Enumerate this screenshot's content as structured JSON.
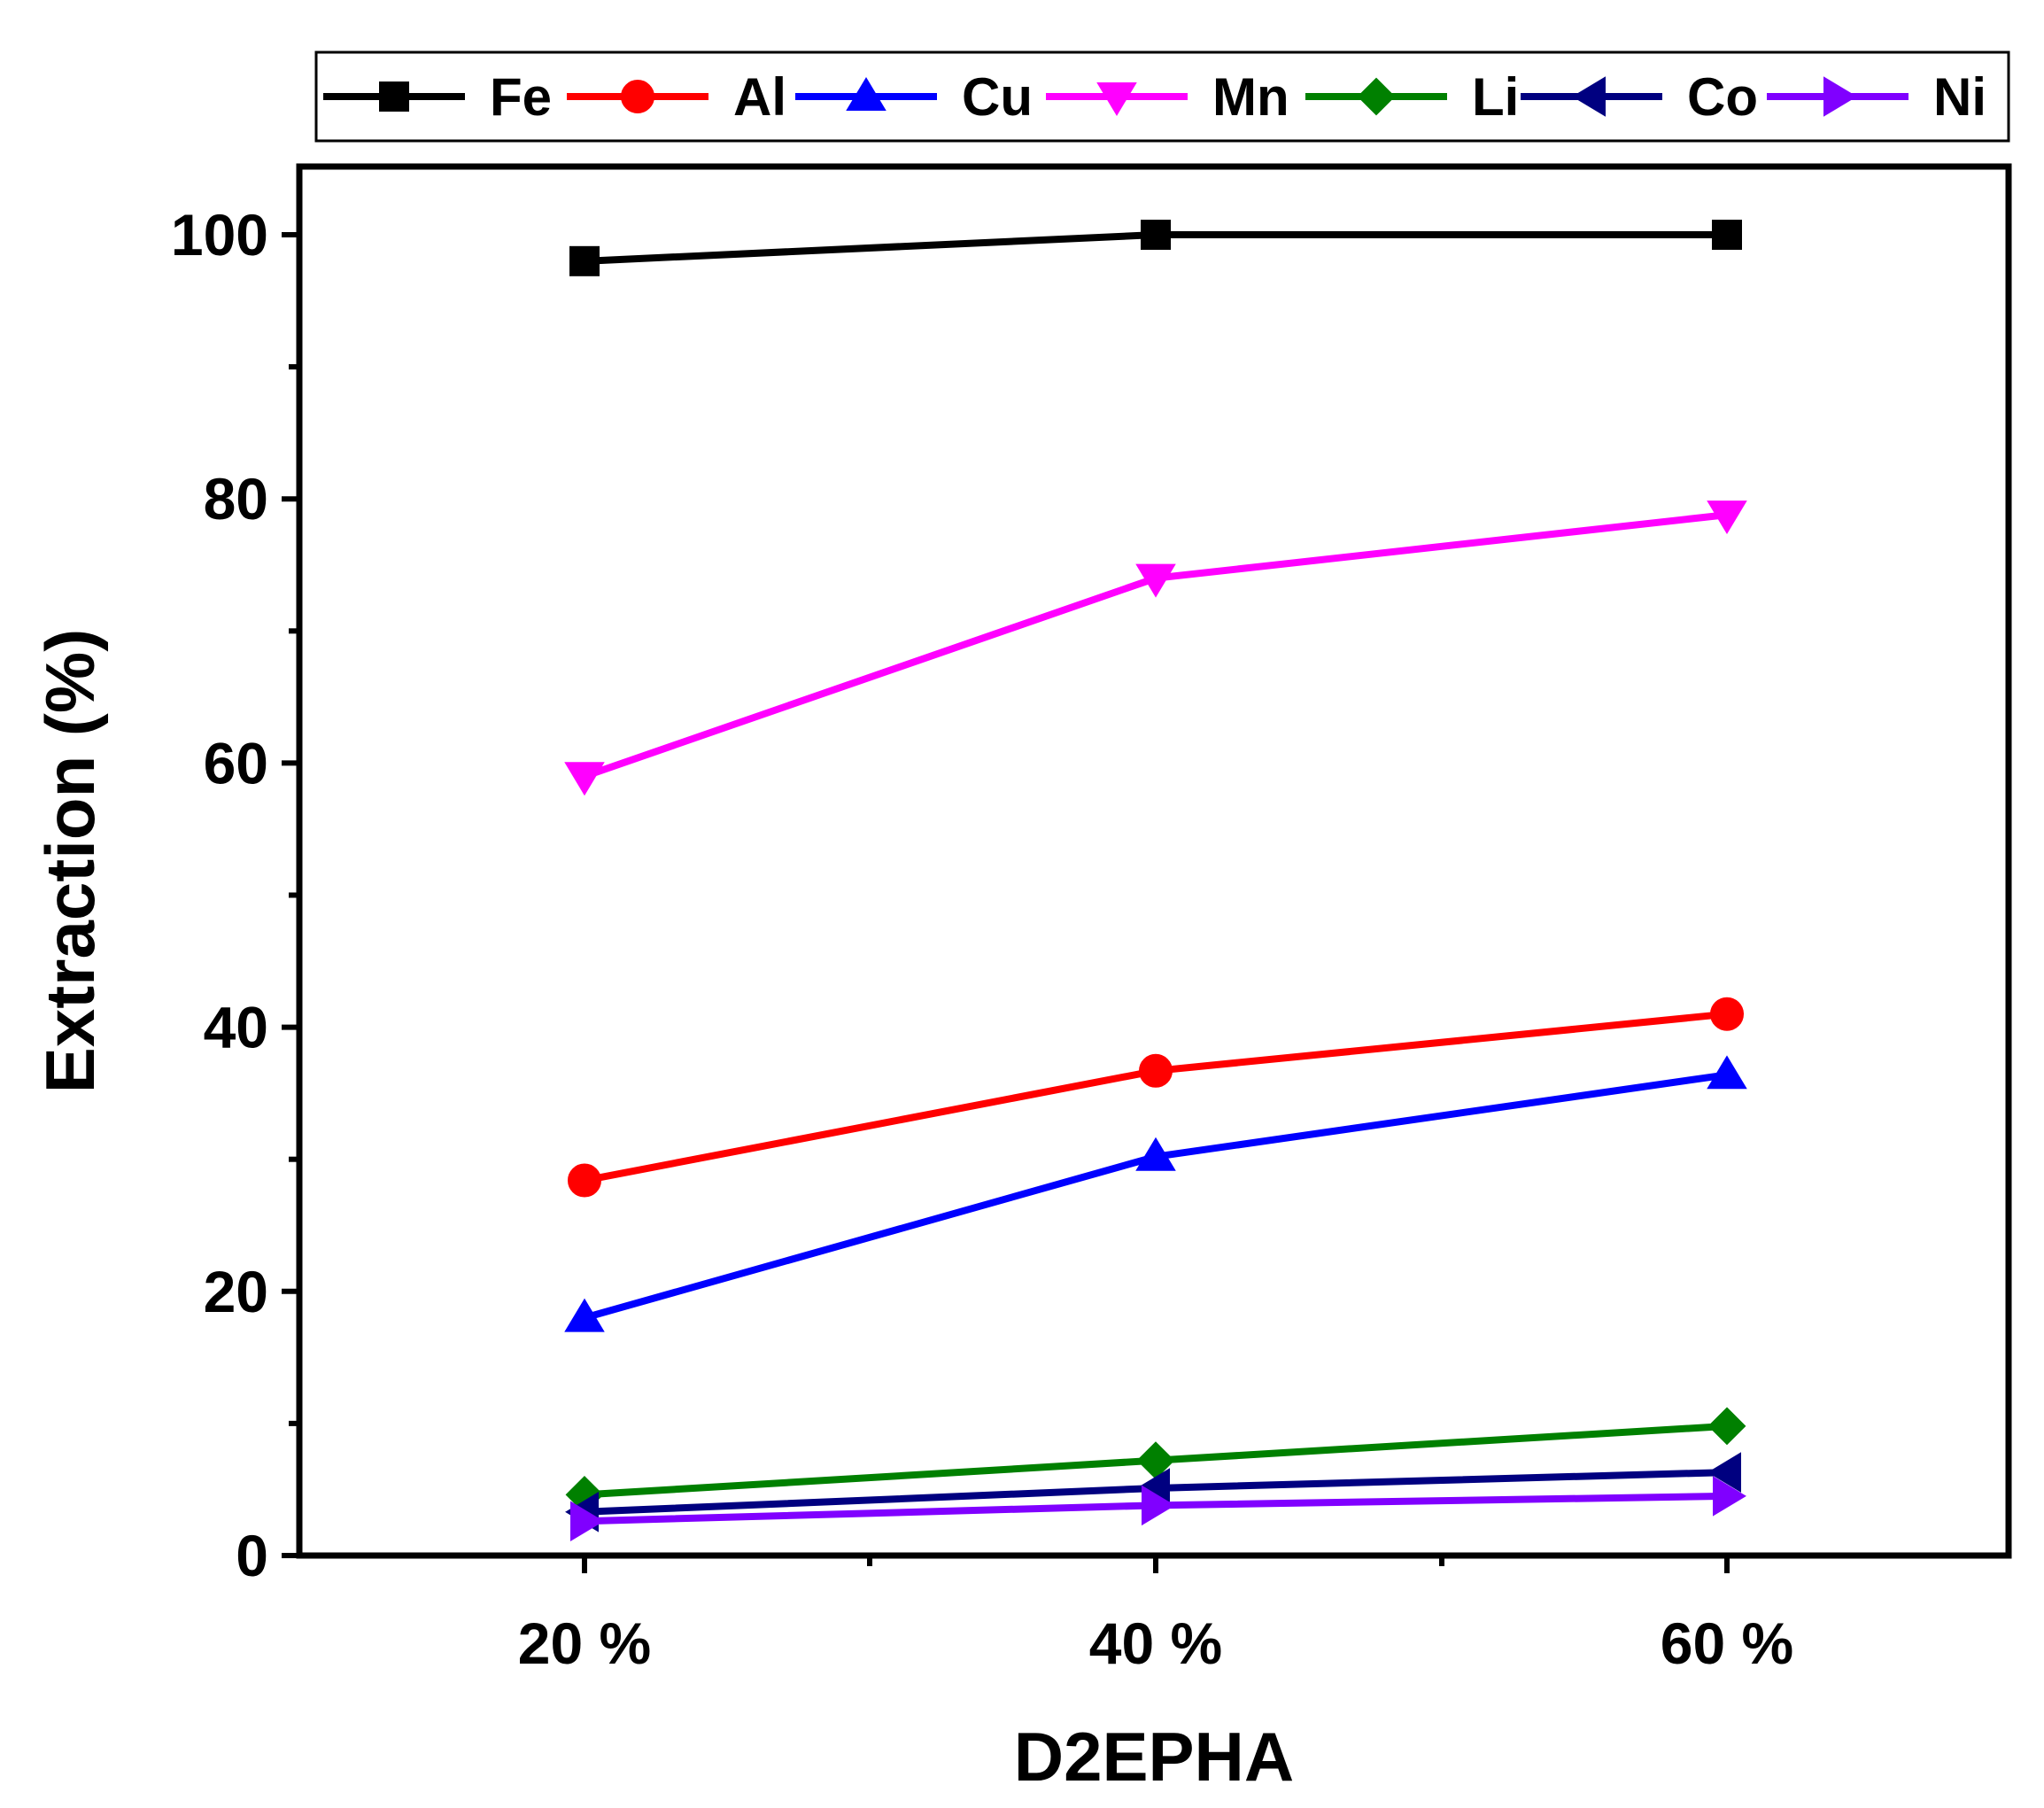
{
  "chart_data": {
    "type": "line",
    "title": "",
    "xlabel": "D2EPHA",
    "ylabel": "Extraction (%)",
    "categories": [
      "20 %",
      "40 %",
      "60 %"
    ],
    "ylim": [
      0,
      105
    ],
    "yticks": [
      0,
      20,
      40,
      60,
      80,
      100
    ],
    "grid": false,
    "legend_position": "top",
    "series": [
      {
        "name": "Fe",
        "color": "#000000",
        "marker": "square",
        "values": [
          98.0,
          100.0,
          100.0
        ]
      },
      {
        "name": "Al",
        "color": "#ff0000",
        "marker": "circle",
        "values": [
          28.4,
          36.7,
          41.0
        ]
      },
      {
        "name": "Cu",
        "color": "#0000ff",
        "marker": "triangle-up",
        "values": [
          18.0,
          30.2,
          36.4
        ]
      },
      {
        "name": "Mn",
        "color": "#ff00ff",
        "marker": "triangle-down",
        "values": [
          59.0,
          74.0,
          78.8
        ]
      },
      {
        "name": "Li",
        "color": "#008000",
        "marker": "diamond",
        "values": [
          4.6,
          7.2,
          9.8
        ]
      },
      {
        "name": "Co",
        "color": "#000080",
        "marker": "triangle-left",
        "values": [
          3.3,
          5.1,
          6.3
        ]
      },
      {
        "name": "Ni",
        "color": "#8000ff",
        "marker": "triangle-right",
        "values": [
          2.6,
          3.8,
          4.5
        ]
      }
    ]
  }
}
